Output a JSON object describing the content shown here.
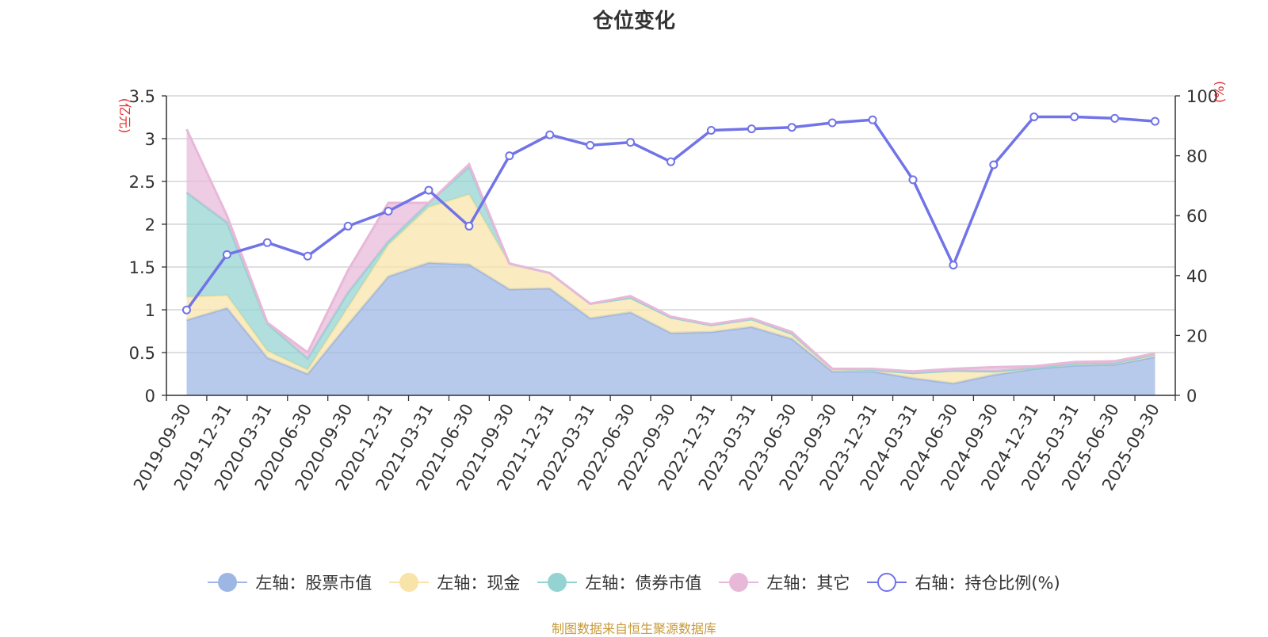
{
  "title": "仓位变化",
  "source_note": "制图数据来自恒生聚源数据库",
  "chart_data": {
    "type": "area",
    "title": "仓位变化",
    "left_axis": {
      "unit_label": "(亿元)",
      "ylim": [
        0,
        3.5
      ],
      "ticks": [
        "0",
        "0.5",
        "1",
        "1.5",
        "2",
        "2.5",
        "3",
        "3.5"
      ],
      "unit_color": "#e8262b"
    },
    "right_axis": {
      "unit_label": "(%)",
      "ylim": [
        0,
        100
      ],
      "ticks": [
        "0",
        "20",
        "40",
        "60",
        "80",
        "100"
      ],
      "unit_color": "#e8262b"
    },
    "grid": true,
    "legend_position": "bottom",
    "categories": [
      "2019-09-30",
      "2019-12-31",
      "2020-03-31",
      "2020-06-30",
      "2020-09-30",
      "2020-12-31",
      "2021-03-31",
      "2021-06-30",
      "2021-09-30",
      "2021-12-31",
      "2022-03-31",
      "2022-06-30",
      "2022-09-30",
      "2022-12-31",
      "2023-03-31",
      "2023-06-30",
      "2023-09-30",
      "2023-12-31",
      "2024-03-31",
      "2024-06-30",
      "2024-09-30",
      "2024-12-31",
      "2025-03-31",
      "2025-06-30",
      "2025-09-30"
    ],
    "series": [
      {
        "name": "左轴：股票市值",
        "axis": "left",
        "kind": "stacked-area",
        "color": "#9db6e3",
        "values": [
          0.88,
          1.02,
          0.44,
          0.25,
          0.83,
          1.39,
          1.55,
          1.53,
          1.24,
          1.25,
          0.9,
          0.97,
          0.73,
          0.74,
          0.8,
          0.66,
          0.28,
          0.28,
          0.2,
          0.14,
          0.24,
          0.31,
          0.35,
          0.36,
          0.45
        ]
      },
      {
        "name": "左轴：现金",
        "axis": "left",
        "kind": "stacked-area",
        "color": "#f8e4a8",
        "values": [
          0.27,
          0.15,
          0.08,
          0.05,
          0.2,
          0.37,
          0.65,
          0.82,
          0.3,
          0.18,
          0.17,
          0.17,
          0.18,
          0.08,
          0.09,
          0.06,
          0.03,
          0.02,
          0.06,
          0.15,
          0.04,
          0.01,
          0.02,
          0.02,
          0.03
        ]
      },
      {
        "name": "左轴：债券市值",
        "axis": "left",
        "kind": "stacked-area",
        "color": "#93d3d1",
        "values": [
          1.22,
          0.85,
          0.32,
          0.13,
          0.17,
          0.04,
          0.05,
          0.32,
          0.0,
          0.0,
          0.0,
          0.0,
          0.0,
          0.0,
          0.0,
          0.0,
          0.0,
          0.0,
          0.0,
          0.0,
          0.0,
          0.0,
          0.0,
          0.0,
          0.0
        ]
      },
      {
        "name": "左轴：其它",
        "axis": "left",
        "kind": "stacked-area",
        "color": "#e8b8d9",
        "values": [
          0.74,
          0.08,
          0.01,
          0.07,
          0.26,
          0.45,
          0.0,
          0.03,
          0.0,
          0.0,
          0.0,
          0.02,
          0.01,
          0.01,
          0.01,
          0.02,
          0.0,
          0.01,
          0.02,
          0.02,
          0.05,
          0.02,
          0.02,
          0.02,
          0.01
        ]
      },
      {
        "name": "右轴：持仓比例(%)",
        "axis": "right",
        "kind": "line",
        "color": "#7173e8",
        "values": [
          28.5,
          47.0,
          51.0,
          46.5,
          56.5,
          61.5,
          68.5,
          56.5,
          80.0,
          87.0,
          83.5,
          84.5,
          78.0,
          88.5,
          89.0,
          89.5,
          91.0,
          92.0,
          72.0,
          43.5,
          77.0,
          93.0,
          93.0,
          92.5,
          91.5
        ]
      }
    ]
  }
}
